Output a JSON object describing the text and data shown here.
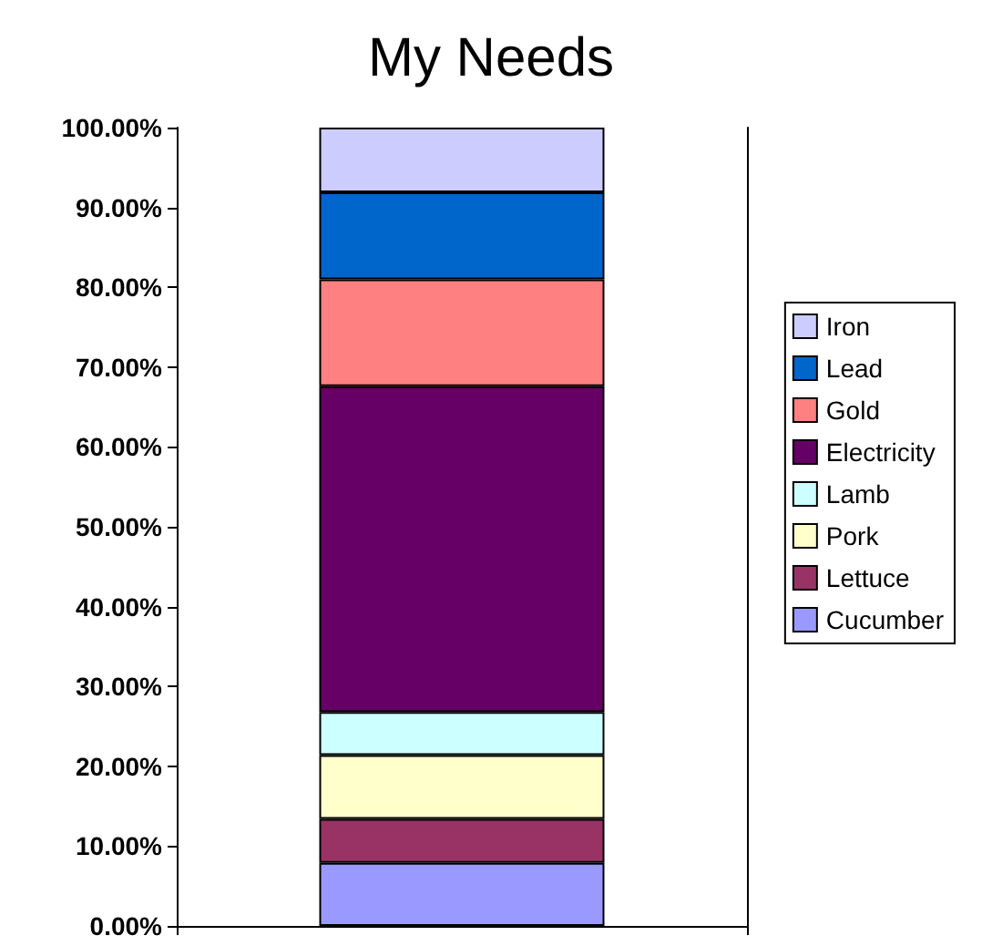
{
  "chart_data": {
    "type": "bar",
    "title": "My Needs",
    "categories": [
      null
    ],
    "stacked": true,
    "series": [
      {
        "name": "Cucumber",
        "color": "#9999ff",
        "values": [
          7.9
        ]
      },
      {
        "name": "Lettuce",
        "color": "#993366",
        "values": [
          5.5
        ]
      },
      {
        "name": "Pork",
        "color": "#ffffcc",
        "values": [
          8.0
        ]
      },
      {
        "name": "Lamb",
        "color": "#ccffff",
        "values": [
          5.4
        ]
      },
      {
        "name": "Electricity",
        "color": "#660066",
        "values": [
          40.8
        ]
      },
      {
        "name": "Gold",
        "color": "#ff8080",
        "values": [
          13.4
        ]
      },
      {
        "name": "Lead",
        "color": "#0066cc",
        "values": [
          10.9
        ]
      },
      {
        "name": "Iron",
        "color": "#ccccff",
        "values": [
          8.1
        ]
      }
    ],
    "ylim": [
      0,
      100
    ],
    "yticks": [
      {
        "value": 0,
        "label": "0.00%"
      },
      {
        "value": 10,
        "label": "10.00%"
      },
      {
        "value": 20,
        "label": "20.00%"
      },
      {
        "value": 30,
        "label": "30.00%"
      },
      {
        "value": 40,
        "label": "40.00%"
      },
      {
        "value": 50,
        "label": "50.00%"
      },
      {
        "value": 60,
        "label": "60.00%"
      },
      {
        "value": 70,
        "label": "70.00%"
      },
      {
        "value": 80,
        "label": "80.00%"
      },
      {
        "value": 90,
        "label": "90.00%"
      },
      {
        "value": 100,
        "label": "100.00%"
      }
    ],
    "legend": "right",
    "grid": false
  }
}
